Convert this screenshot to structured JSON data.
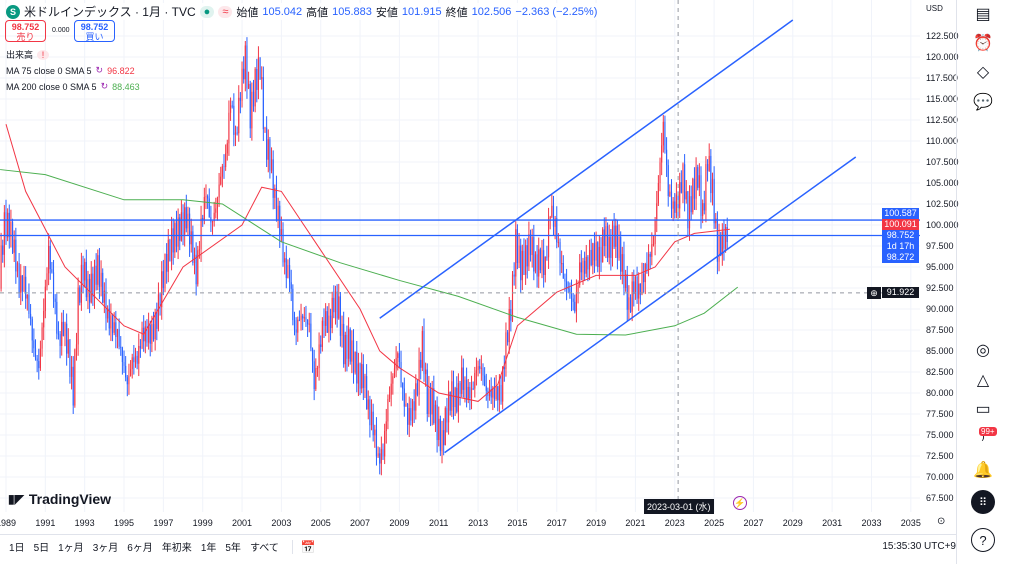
{
  "header": {
    "symbol_icon": "S",
    "title": "米ドルインデックス · 1月 · TVC",
    "ohlc": [
      {
        "label": "始値",
        "value": "105.042"
      },
      {
        "label": "高値",
        "value": "105.883"
      },
      {
        "label": "安値",
        "value": "101.915"
      },
      {
        "label": "終値",
        "value": "102.506"
      }
    ],
    "change": "−2.363 (−2.25%)",
    "market_status_icon": "≈"
  },
  "trade": {
    "sell_price": "98.752",
    "sell_label": "売り",
    "spread": "0.000",
    "buy_price": "98.752",
    "buy_label": "買い"
  },
  "legend": {
    "volume": "出来高",
    "volume_warn": "!",
    "ma75": {
      "label": "MA 75 close 0 SMA 5",
      "value": "96.822",
      "color": "#f23645"
    },
    "ma200": {
      "label": "MA 200 close 0 SMA 5",
      "value": "88.463",
      "color": "#4caf50"
    }
  },
  "price_axis": {
    "currency": "USD",
    "tags": {
      "upper_line": "100.587",
      "last_close": "100.091",
      "current": "98.752",
      "countdown": "1d 17h",
      "lower": "98.272",
      "crosshair": "91.922"
    }
  },
  "time_axis": {
    "crosshair_label": "2023-03-01 (水)"
  },
  "bottom": {
    "ranges": [
      "1日",
      "5日",
      "1ヶ月",
      "3ヶ月",
      "6ヶ月",
      "年初来",
      "1年",
      "5年",
      "すべて"
    ],
    "time": "15:35:30 UTC+9"
  },
  "toolbar": {
    "notification_badge": "99+"
  },
  "logo": "TradingView",
  "chart_data": {
    "type": "candlestick",
    "ylim": [
      67.5,
      123
    ],
    "xlim": [
      1988.7,
      2036.3
    ],
    "price_ticks": [
      "122.500",
      "120.000",
      "117.500",
      "115.000",
      "112.500",
      "110.000",
      "107.500",
      "105.000",
      "102.500",
      "100.000",
      "97.500",
      "95.000",
      "92.500",
      "90.000",
      "87.500",
      "85.000",
      "82.500",
      "80.000",
      "77.500",
      "75.000",
      "72.500",
      "70.000",
      "67.500"
    ],
    "year_ticks": [
      "1989",
      "1991",
      "1993",
      "1995",
      "1997",
      "1999",
      "2001",
      "2003",
      "2005",
      "2007",
      "2009",
      "2011",
      "2013",
      "2015",
      "2017",
      "2019",
      "2021",
      "2023",
      "2025",
      "2027",
      "2029",
      "2031",
      "2033",
      "2035"
    ],
    "start_year": 1988,
    "step_years": 0.25,
    "closes": [
      92,
      95,
      97,
      94,
      100,
      100,
      97,
      93,
      93,
      90,
      85,
      83,
      90,
      97,
      92,
      86,
      88,
      85,
      80,
      91,
      95,
      92,
      93,
      95,
      92,
      89,
      88,
      87,
      84,
      81,
      84,
      84,
      87,
      87,
      87,
      89,
      93,
      96,
      98,
      99,
      100,
      101,
      98,
      94,
      100,
      104,
      100,
      102,
      106,
      108,
      115,
      110,
      116,
      120,
      113,
      117,
      119,
      110,
      108,
      103,
      100,
      95,
      94,
      87,
      89,
      89,
      88,
      81,
      85,
      89,
      88,
      91,
      90,
      85,
      86,
      84,
      82,
      82,
      78,
      76,
      72,
      73,
      79,
      82,
      85,
      80,
      77,
      78,
      81,
      86,
      79,
      79,
      76,
      74,
      78,
      80,
      79,
      82,
      80,
      80,
      83,
      83,
      80,
      80,
      80,
      80,
      86,
      90,
      98,
      95,
      96,
      98,
      95,
      96,
      95,
      102,
      100,
      96,
      93,
      92,
      90,
      95,
      95,
      96,
      97,
      96,
      99,
      97,
      99,
      97,
      94,
      90,
      93,
      92,
      94,
      96,
      98,
      105,
      112,
      104,
      102,
      103,
      106,
      101,
      104,
      106,
      101,
      108,
      104,
      97,
      98,
      99
    ],
    "ma75": [
      [
        1989,
        112
      ],
      [
        1990,
        104
      ],
      [
        1992,
        95
      ],
      [
        1995,
        88
      ],
      [
        1996,
        87
      ],
      [
        1998,
        95
      ],
      [
        2001,
        100
      ],
      [
        2002,
        104.5
      ],
      [
        2003,
        104
      ],
      [
        2005,
        97
      ],
      [
        2007,
        90
      ],
      [
        2008,
        85
      ],
      [
        2009,
        83
      ],
      [
        2011,
        80
      ],
      [
        2013,
        79
      ],
      [
        2014,
        81
      ],
      [
        2015,
        88
      ],
      [
        2017,
        92
      ],
      [
        2019,
        94
      ],
      [
        2021,
        94
      ],
      [
        2022,
        95
      ],
      [
        2023,
        98
      ],
      [
        2024,
        99
      ],
      [
        2025.8,
        99.5
      ]
    ],
    "ma200": [
      [
        1988.7,
        106.6
      ],
      [
        1991,
        106
      ],
      [
        1995,
        103
      ],
      [
        1998,
        103
      ],
      [
        2000,
        102.5
      ],
      [
        2003,
        98
      ],
      [
        2006,
        95.5
      ],
      [
        2009,
        93.4
      ],
      [
        2012,
        91.5
      ],
      [
        2015,
        89
      ],
      [
        2018,
        87
      ],
      [
        2020.5,
        86.9
      ],
      [
        2023,
        88
      ],
      [
        2024.5,
        89.5
      ],
      [
        2026.2,
        92.6
      ]
    ],
    "trendlines": [
      {
        "from": [
          2008,
          88.9
        ],
        "to": [
          2029,
          124.4
        ]
      },
      {
        "from": [
          2011.3,
          72.9
        ],
        "to": [
          2032.2,
          108.1
        ]
      }
    ],
    "hlines": [
      100.587,
      98.752
    ],
    "crosshair": {
      "year": 2023.17,
      "price": 91.922
    }
  }
}
